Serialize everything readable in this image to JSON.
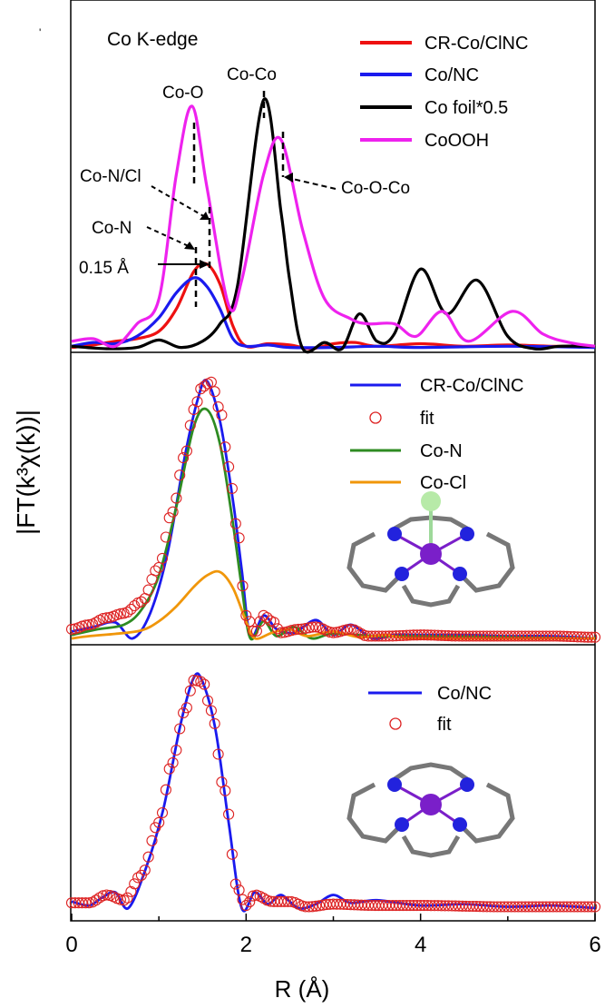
{
  "figure": {
    "ylabel": "|FT(k³χ(k))|",
    "xlabel": "R (Å)",
    "xticks": [
      "0",
      "2",
      "4",
      "6"
    ]
  },
  "panels": {
    "top": {
      "title": "Co K-edge",
      "legend": [
        "CR-Co/ClNC",
        "Co/NC",
        "Co foil*0.5",
        "CoOOH"
      ],
      "annotations": [
        "Co-O",
        "Co-Co",
        "Co-N/Cl",
        "Co-N",
        "0.15 Å",
        "Co-O-Co"
      ]
    },
    "middle": {
      "legend": [
        "CR-Co/ClNC",
        "fit",
        "Co-N",
        "Co-Cl"
      ]
    },
    "bottom": {
      "legend": [
        "Co/NC",
        "fit"
      ]
    }
  },
  "colors": {
    "red": "#ee1111",
    "blue": "#1a1aee",
    "black": "#000000",
    "magenta": "#ee22ee",
    "green": "#2e8b22",
    "orange": "#f0960a",
    "fit_marker": "#dd2222"
  },
  "chart_data": [
    {
      "type": "line",
      "panel": "top",
      "xlim": [
        0,
        6
      ],
      "x_axis_label": "R (Å)",
      "series": [
        {
          "name": "CR-Co/ClNC",
          "color": "red",
          "points": [
            [
              0,
              0.01
            ],
            [
              0.25,
              0.03
            ],
            [
              0.5,
              0.06
            ],
            [
              0.75,
              0.08
            ],
            [
              1.0,
              0.14
            ],
            [
              1.2,
              0.32
            ],
            [
              1.4,
              0.62
            ],
            [
              1.55,
              0.68
            ],
            [
              1.7,
              0.52
            ],
            [
              1.85,
              0.18
            ],
            [
              2.0,
              0.02
            ],
            [
              2.25,
              0.04
            ],
            [
              2.5,
              0.03
            ],
            [
              2.75,
              0.0
            ],
            [
              3.0,
              0.04
            ],
            [
              3.25,
              0.05
            ],
            [
              3.5,
              0.02
            ],
            [
              4.0,
              0.04
            ],
            [
              4.5,
              0.02
            ],
            [
              5.0,
              0.03
            ],
            [
              5.5,
              0.02
            ],
            [
              6.0,
              0.02
            ]
          ]
        },
        {
          "name": "Co/NC",
          "color": "blue",
          "points": [
            [
              0,
              0.02
            ],
            [
              0.25,
              0.05
            ],
            [
              0.5,
              0.04
            ],
            [
              0.75,
              0.1
            ],
            [
              1.0,
              0.25
            ],
            [
              1.2,
              0.45
            ],
            [
              1.4,
              0.57
            ],
            [
              1.55,
              0.5
            ],
            [
              1.7,
              0.32
            ],
            [
              1.85,
              0.08
            ],
            [
              2.0,
              0.02
            ],
            [
              2.25,
              0.03
            ],
            [
              2.5,
              0.01
            ],
            [
              3.0,
              0.01
            ],
            [
              3.5,
              0.02
            ],
            [
              4.0,
              0.01
            ],
            [
              5.0,
              0.02
            ],
            [
              6.0,
              0.01
            ]
          ]
        },
        {
          "name": "Co foil*0.5",
          "color": "black",
          "points": [
            [
              0,
              0.02
            ],
            [
              0.4,
              0.0
            ],
            [
              0.75,
              0.01
            ],
            [
              1.0,
              0.07
            ],
            [
              1.25,
              0.01
            ],
            [
              1.5,
              0.06
            ],
            [
              1.7,
              0.2
            ],
            [
              1.9,
              0.5
            ],
            [
              2.2,
              2.0
            ],
            [
              2.4,
              1.1
            ],
            [
              2.5,
              0.55
            ],
            [
              2.65,
              0.0
            ],
            [
              2.9,
              0.05
            ],
            [
              3.1,
              0.0
            ],
            [
              3.3,
              0.28
            ],
            [
              3.5,
              0.06
            ],
            [
              3.7,
              0.12
            ],
            [
              4.0,
              0.64
            ],
            [
              4.3,
              0.28
            ],
            [
              4.65,
              0.55
            ],
            [
              5.0,
              0.1
            ],
            [
              5.3,
              0.0
            ],
            [
              5.6,
              0.02
            ],
            [
              6.0,
              0.02
            ]
          ]
        },
        {
          "name": "CoOOH",
          "color": "magenta",
          "points": [
            [
              0,
              0.06
            ],
            [
              0.25,
              0.08
            ],
            [
              0.5,
              0.02
            ],
            [
              0.75,
              0.2
            ],
            [
              1.0,
              0.4
            ],
            [
              1.2,
              1.4
            ],
            [
              1.38,
              1.95
            ],
            [
              1.55,
              1.3
            ],
            [
              1.8,
              0.35
            ],
            [
              1.95,
              0.55
            ],
            [
              2.2,
              1.4
            ],
            [
              2.4,
              1.68
            ],
            [
              2.65,
              0.95
            ],
            [
              2.9,
              0.4
            ],
            [
              3.2,
              0.24
            ],
            [
              3.4,
              0.2
            ],
            [
              3.7,
              0.2
            ],
            [
              3.95,
              0.1
            ],
            [
              4.25,
              0.3
            ],
            [
              4.55,
              0.06
            ],
            [
              5.05,
              0.3
            ],
            [
              5.4,
              0.12
            ],
            [
              5.7,
              0.05
            ],
            [
              6.0,
              0.02
            ]
          ]
        }
      ]
    },
    {
      "type": "line",
      "panel": "middle",
      "xlim": [
        0,
        6
      ],
      "series": [
        {
          "name": "CR-Co/ClNC",
          "color": "blue",
          "points": [
            [
              0,
              0.06
            ],
            [
              0.25,
              0.1
            ],
            [
              0.5,
              0.14
            ],
            [
              0.7,
              0.0
            ],
            [
              0.9,
              0.22
            ],
            [
              1.1,
              0.75
            ],
            [
              1.3,
              1.6
            ],
            [
              1.45,
              2.1
            ],
            [
              1.55,
              2.25
            ],
            [
              1.7,
              1.9
            ],
            [
              1.85,
              1.2
            ],
            [
              1.95,
              0.6
            ],
            [
              2.05,
              0.02
            ],
            [
              2.2,
              0.2
            ],
            [
              2.35,
              0.08
            ],
            [
              2.55,
              0.05
            ],
            [
              2.8,
              0.16
            ],
            [
              3.0,
              0.03
            ],
            [
              3.2,
              0.12
            ],
            [
              3.45,
              0.0
            ],
            [
              3.7,
              0.03
            ],
            [
              4.0,
              0.03
            ],
            [
              4.5,
              0.03
            ],
            [
              5.0,
              0.02
            ],
            [
              5.5,
              0.02
            ],
            [
              6.0,
              0.0
            ]
          ]
        },
        {
          "name": "fit",
          "color": "fit_marker",
          "marker": "open-circle",
          "points": [
            [
              0,
              0.08
            ],
            [
              0.2,
              0.12
            ],
            [
              0.4,
              0.18
            ],
            [
              0.6,
              0.22
            ],
            [
              0.8,
              0.32
            ],
            [
              1.0,
              0.62
            ],
            [
              1.15,
              1.1
            ],
            [
              1.3,
              1.6
            ],
            [
              1.4,
              2.0
            ],
            [
              1.5,
              2.2
            ],
            [
              1.6,
              2.24
            ],
            [
              1.7,
              2.0
            ],
            [
              1.8,
              1.5
            ],
            [
              1.9,
              0.95
            ],
            [
              2.0,
              0.2
            ],
            [
              2.1,
              0.05
            ],
            [
              2.2,
              0.2
            ],
            [
              2.3,
              0.15
            ],
            [
              2.4,
              0.05
            ],
            [
              2.6,
              0.08
            ],
            [
              2.8,
              0.1
            ],
            [
              3.0,
              0.05
            ],
            [
              3.2,
              0.08
            ],
            [
              3.4,
              0.02
            ],
            [
              3.6,
              0.02
            ],
            [
              4.0,
              0.03
            ],
            [
              4.5,
              0.02
            ],
            [
              5.0,
              0.02
            ],
            [
              5.5,
              0.02
            ],
            [
              6.0,
              0.01
            ]
          ]
        },
        {
          "name": "Co-N",
          "color": "green",
          "points": [
            [
              0,
              0.03
            ],
            [
              0.3,
              0.08
            ],
            [
              0.6,
              0.12
            ],
            [
              0.8,
              0.25
            ],
            [
              1.0,
              0.55
            ],
            [
              1.2,
              1.15
            ],
            [
              1.4,
              1.85
            ],
            [
              1.55,
              2.0
            ],
            [
              1.7,
              1.7
            ],
            [
              1.85,
              1.0
            ],
            [
              1.95,
              0.45
            ],
            [
              2.05,
              0.0
            ],
            [
              2.2,
              0.15
            ],
            [
              2.35,
              0.02
            ],
            [
              2.55,
              0.1
            ],
            [
              2.75,
              0.0
            ],
            [
              3.0,
              0.04
            ],
            [
              3.5,
              0.02
            ],
            [
              4.0,
              0.02
            ],
            [
              6.0,
              0.0
            ]
          ]
        },
        {
          "name": "Co-Cl",
          "color": "orange",
          "points": [
            [
              0,
              0.0
            ],
            [
              0.2,
              0.02
            ],
            [
              0.5,
              0.04
            ],
            [
              0.8,
              0.07
            ],
            [
              1.0,
              0.15
            ],
            [
              1.2,
              0.28
            ],
            [
              1.4,
              0.45
            ],
            [
              1.55,
              0.55
            ],
            [
              1.7,
              0.58
            ],
            [
              1.85,
              0.44
            ],
            [
              2.0,
              0.15
            ],
            [
              2.1,
              0.0
            ],
            [
              2.3,
              0.05
            ],
            [
              2.5,
              0.08
            ],
            [
              2.7,
              0.02
            ],
            [
              3.0,
              0.06
            ],
            [
              3.3,
              0.01
            ],
            [
              3.6,
              0.03
            ],
            [
              4.0,
              0.0
            ],
            [
              6.0,
              0.0
            ]
          ]
        }
      ]
    },
    {
      "type": "line",
      "panel": "bottom",
      "xlim": [
        0,
        6
      ],
      "series": [
        {
          "name": "Co/NC",
          "color": "blue",
          "points": [
            [
              0,
              0.05
            ],
            [
              0.2,
              0.02
            ],
            [
              0.35,
              0.08
            ],
            [
              0.5,
              0.12
            ],
            [
              0.65,
              0.0
            ],
            [
              0.85,
              0.3
            ],
            [
              1.05,
              0.75
            ],
            [
              1.25,
              1.4
            ],
            [
              1.4,
              1.75
            ],
            [
              1.5,
              1.72
            ],
            [
              1.65,
              1.35
            ],
            [
              1.8,
              0.65
            ],
            [
              1.95,
              0.0
            ],
            [
              2.1,
              0.12
            ],
            [
              2.25,
              0.03
            ],
            [
              2.4,
              0.1
            ],
            [
              2.6,
              0.0
            ],
            [
              2.8,
              0.03
            ],
            [
              3.0,
              0.1
            ],
            [
              3.2,
              0.04
            ],
            [
              3.5,
              0.06
            ],
            [
              4.0,
              0.02
            ],
            [
              4.5,
              0.03
            ],
            [
              5.0,
              0.01
            ],
            [
              5.5,
              0.02
            ],
            [
              6.0,
              0.0
            ]
          ]
        },
        {
          "name": "fit",
          "color": "fit_marker",
          "marker": "open-circle",
          "points": [
            [
              0,
              0.04
            ],
            [
              0.2,
              0.04
            ],
            [
              0.4,
              0.1
            ],
            [
              0.6,
              0.06
            ],
            [
              0.8,
              0.25
            ],
            [
              1.0,
              0.65
            ],
            [
              1.15,
              1.1
            ],
            [
              1.3,
              1.5
            ],
            [
              1.4,
              1.73
            ],
            [
              1.5,
              1.72
            ],
            [
              1.6,
              1.5
            ],
            [
              1.75,
              0.9
            ],
            [
              1.9,
              0.15
            ],
            [
              2.0,
              0.02
            ],
            [
              2.1,
              0.1
            ],
            [
              2.3,
              0.05
            ],
            [
              2.5,
              0.05
            ],
            [
              2.7,
              0.01
            ],
            [
              3.0,
              0.03
            ],
            [
              3.5,
              0.02
            ],
            [
              4.0,
              0.02
            ],
            [
              5.0,
              0.01
            ],
            [
              6.0,
              0.01
            ]
          ]
        }
      ]
    }
  ]
}
